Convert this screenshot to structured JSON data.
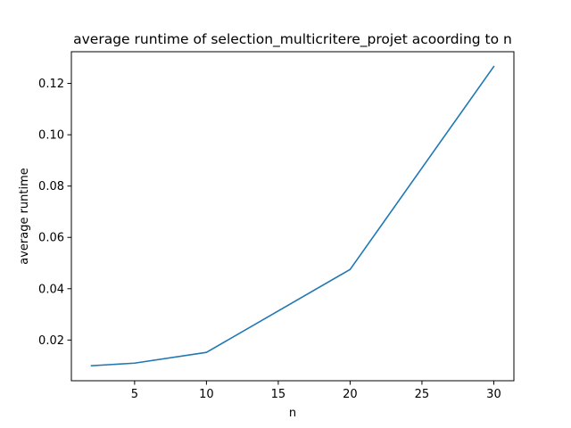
{
  "chart_data": {
    "type": "line",
    "title": "average runtime of selection_multicritere_projet acoording to n",
    "xlabel": "n",
    "ylabel": "average runtime",
    "xlim": [
      0.6,
      31.4
    ],
    "ylim": [
      0.00414,
      0.13236
    ],
    "xticks": [
      5,
      10,
      15,
      20,
      25,
      30
    ],
    "xtick_labels": [
      "5",
      "10",
      "15",
      "20",
      "25",
      "30"
    ],
    "yticks": [
      0.02,
      0.04,
      0.06,
      0.08,
      0.1,
      0.12
    ],
    "ytick_labels": [
      "0.02",
      "0.04",
      "0.06",
      "0.08",
      "0.10",
      "0.12"
    ],
    "grid": false,
    "series": [
      {
        "color": "#1f77b4",
        "x": [
          2,
          5,
          10,
          20,
          30
        ],
        "y": [
          0.01,
          0.011,
          0.0152,
          0.0475,
          0.1266
        ]
      }
    ]
  }
}
